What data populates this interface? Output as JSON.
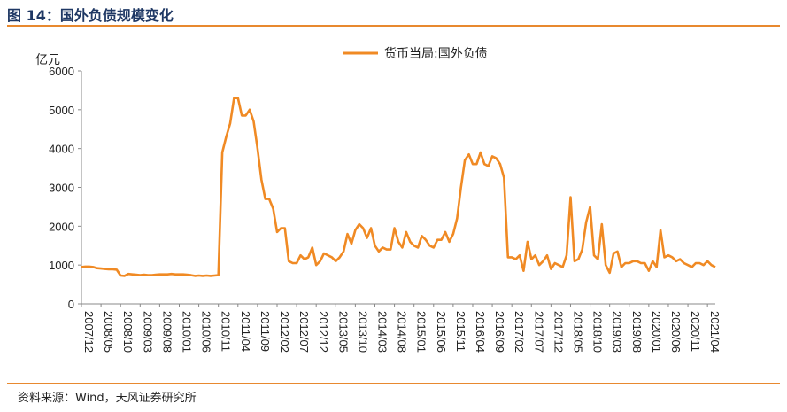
{
  "header": {
    "title": "图 14：国外负债规模变化"
  },
  "footer": {
    "source": "资料来源：Wind，天风证券研究所"
  },
  "chart_data": {
    "type": "line",
    "ylabel": "亿元",
    "ylim": [
      0,
      6000
    ],
    "yticks": [
      0,
      1000,
      2000,
      3000,
      4000,
      5000,
      6000
    ],
    "x_tick_labels": [
      "2007/12",
      "2008/05",
      "2008/10",
      "2009/03",
      "2009/08",
      "2010/01",
      "2010/06",
      "2010/11",
      "2011/04",
      "2011/09",
      "2012/02",
      "2012/07",
      "2012/12",
      "2013/05",
      "2013/10",
      "2014/03",
      "2014/08",
      "2015/01",
      "2015/06",
      "2015/11",
      "2016/04",
      "2016/09",
      "2017/02",
      "2017/07",
      "2017/12",
      "2018/05",
      "2018/10",
      "2019/03",
      "2019/08",
      "2020/01",
      "2020/06",
      "2020/11",
      "2021/04"
    ],
    "legend": "top-center",
    "grid": false,
    "series": [
      {
        "name": "货币当局:国外负债",
        "color": "#f08a24",
        "x": [
          "2007/12",
          "2008/01",
          "2008/02",
          "2008/03",
          "2008/04",
          "2008/05",
          "2008/06",
          "2008/07",
          "2008/08",
          "2008/09",
          "2008/10",
          "2008/11",
          "2008/12",
          "2009/01",
          "2009/02",
          "2009/03",
          "2009/04",
          "2009/05",
          "2009/06",
          "2009/07",
          "2009/08",
          "2009/09",
          "2009/10",
          "2009/11",
          "2009/12",
          "2010/01",
          "2010/02",
          "2010/03",
          "2010/04",
          "2010/05",
          "2010/06",
          "2010/07",
          "2010/08",
          "2010/09",
          "2010/10",
          "2010/11",
          "2010/12",
          "2011/01",
          "2011/02",
          "2011/03",
          "2011/04",
          "2011/05",
          "2011/06",
          "2011/07",
          "2011/08",
          "2011/09",
          "2011/10",
          "2011/11",
          "2011/12",
          "2012/01",
          "2012/02",
          "2012/03",
          "2012/04",
          "2012/05",
          "2012/06",
          "2012/07",
          "2012/08",
          "2012/09",
          "2012/10",
          "2012/11",
          "2012/12",
          "2013/01",
          "2013/02",
          "2013/03",
          "2013/04",
          "2013/05",
          "2013/06",
          "2013/07",
          "2013/08",
          "2013/09",
          "2013/10",
          "2013/11",
          "2013/12",
          "2014/01",
          "2014/02",
          "2014/03",
          "2014/04",
          "2014/05",
          "2014/06",
          "2014/07",
          "2014/08",
          "2014/09",
          "2014/10",
          "2014/11",
          "2014/12",
          "2015/01",
          "2015/02",
          "2015/03",
          "2015/04",
          "2015/05",
          "2015/06",
          "2015/07",
          "2015/08",
          "2015/09",
          "2015/10",
          "2015/11",
          "2015/12",
          "2016/01",
          "2016/02",
          "2016/03",
          "2016/04",
          "2016/05",
          "2016/06",
          "2016/07",
          "2016/08",
          "2016/09",
          "2016/10",
          "2016/11",
          "2016/12",
          "2017/01",
          "2017/02",
          "2017/03",
          "2017/04",
          "2017/05",
          "2017/06",
          "2017/07",
          "2017/08",
          "2017/09",
          "2017/10",
          "2017/11",
          "2017/12",
          "2018/01",
          "2018/02",
          "2018/03",
          "2018/04",
          "2018/05",
          "2018/06",
          "2018/07",
          "2018/08",
          "2018/09",
          "2018/10",
          "2018/11",
          "2018/12",
          "2019/01",
          "2019/02",
          "2019/03",
          "2019/04",
          "2019/05",
          "2019/06",
          "2019/07",
          "2019/08",
          "2019/09",
          "2019/10",
          "2019/11",
          "2019/12",
          "2020/01",
          "2020/02",
          "2020/03",
          "2020/04",
          "2020/05",
          "2020/06",
          "2020/07",
          "2020/08",
          "2020/09",
          "2020/10",
          "2020/11",
          "2020/12",
          "2021/01",
          "2021/02",
          "2021/03",
          "2021/04",
          "2021/05",
          "2021/06"
        ],
        "values": [
          950,
          960,
          960,
          950,
          920,
          910,
          900,
          890,
          890,
          880,
          730,
          720,
          770,
          760,
          750,
          740,
          750,
          740,
          740,
          750,
          760,
          760,
          760,
          770,
          760,
          760,
          760,
          750,
          740,
          720,
          730,
          720,
          730,
          720,
          730,
          740,
          3900,
          4300,
          4650,
          5300,
          5300,
          4850,
          4850,
          5000,
          4700,
          4000,
          3200,
          2700,
          2700,
          2450,
          1850,
          1950,
          1950,
          1100,
          1050,
          1050,
          1250,
          1150,
          1200,
          1450,
          1000,
          1100,
          1300,
          1250,
          1200,
          1100,
          1200,
          1350,
          1800,
          1550,
          1900,
          2050,
          1950,
          1700,
          1950,
          1500,
          1350,
          1450,
          1400,
          1400,
          1950,
          1600,
          1450,
          1850,
          1600,
          1500,
          1450,
          1750,
          1650,
          1500,
          1450,
          1650,
          1650,
          1850,
          1600,
          1800,
          2200,
          3000,
          3700,
          3850,
          3600,
          3600,
          3900,
          3600,
          3550,
          3800,
          3750,
          3600,
          3250,
          1200,
          1200,
          1150,
          1250,
          850,
          1600,
          1150,
          1250,
          1000,
          1100,
          1250,
          900,
          1050,
          1000,
          950,
          1250,
          2750,
          1100,
          1150,
          1400,
          2100,
          2500,
          1250,
          1150,
          2050,
          1000,
          800,
          1300,
          1350,
          950,
          1050,
          1050,
          1100,
          1100,
          1050,
          1050,
          850,
          1100,
          950,
          1900,
          1200,
          1250,
          1200,
          1100,
          1150,
          1050,
          1000,
          950,
          1050,
          1050,
          1000,
          1100,
          1000,
          950
        ]
      }
    ]
  }
}
